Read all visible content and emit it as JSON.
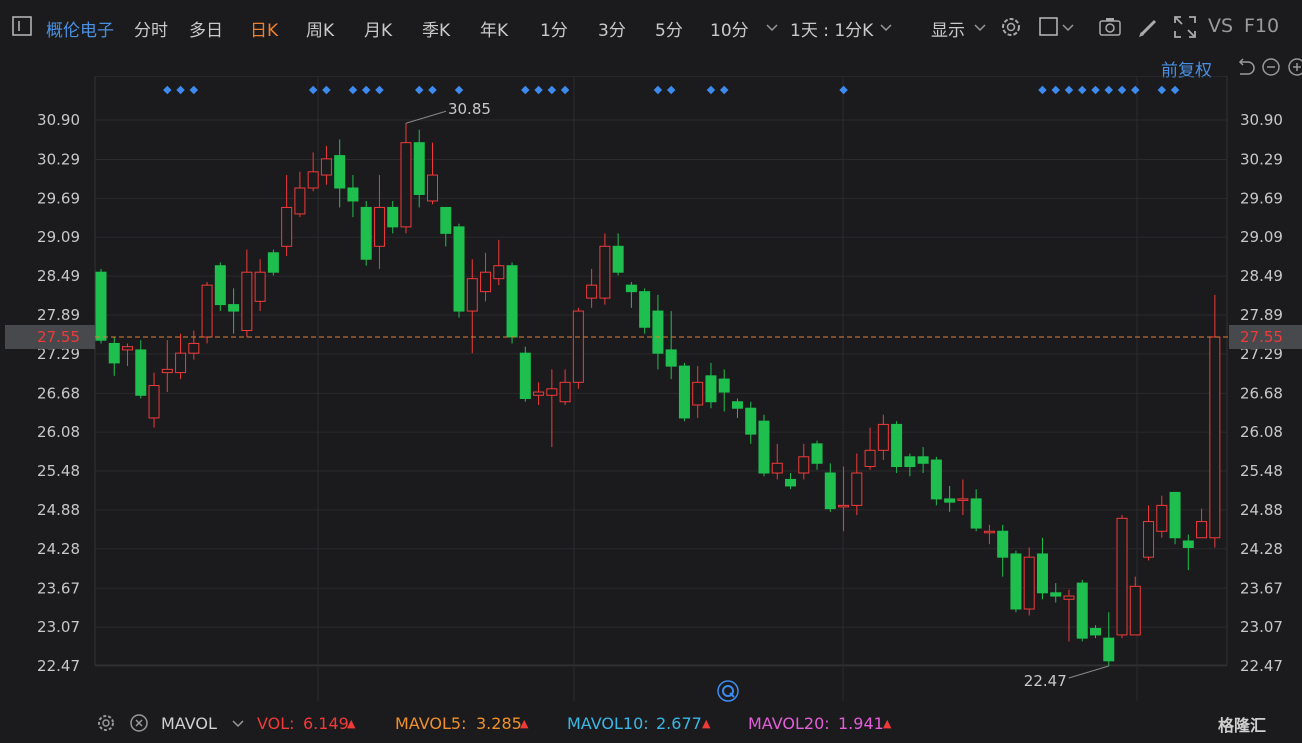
{
  "toolbar": {
    "stock_name": "概伦电子",
    "periods": [
      "分时",
      "多日",
      "日K",
      "周K",
      "月K",
      "季K",
      "年K",
      "1分",
      "3分",
      "5分",
      "10分"
    ],
    "active_period": "日K",
    "multi_period": "1天 : 1分K",
    "display_label": "显示",
    "vs_label": "VS",
    "f10_label": "F10"
  },
  "adjust_label": "前复权",
  "current_price_label": "27.55",
  "colors": {
    "up": "#f03a3a",
    "down": "#1fbf4f",
    "price_line": "#e07d2e",
    "grid": "#2b2b2e",
    "dots": "#3e8bef",
    "mavol5": "#f0902a",
    "mavol10": "#3ab7e6",
    "mavol20": "#e35ed8"
  },
  "indicator_bar": {
    "name": "MAVOL",
    "vol_label": "VOL:",
    "vol_value": "6.149",
    "mavol5_label": "MAVOL5:",
    "mavol5_value": "3.285",
    "mavol10_label": "MAVOL10:",
    "mavol10_value": "2.677",
    "mavol20_label": "MAVOL20:",
    "mavol20_value": "1.941"
  },
  "watermark": "格隆汇",
  "chart_data": {
    "type": "candlestick",
    "ylim": [
      22.1,
      31.15
    ],
    "y_ticks": [
      "30.90",
      "30.29",
      "29.69",
      "29.09",
      "28.49",
      "27.89",
      "27.29",
      "26.68",
      "26.08",
      "25.48",
      "24.88",
      "24.28",
      "23.67",
      "23.07",
      "22.47"
    ],
    "current_price": 27.55,
    "annotations": [
      {
        "text": "30.85",
        "label_value": 30.85,
        "type": "max"
      },
      {
        "text": "22.47",
        "label_value": 22.47,
        "type": "min"
      }
    ],
    "candles": [
      [
        28.55,
        27.5,
        28.6,
        27.45
      ],
      [
        27.45,
        27.15,
        27.55,
        26.95
      ],
      [
        27.35,
        27.4,
        27.45,
        27.1
      ],
      [
        27.35,
        26.65,
        27.5,
        26.6
      ],
      [
        26.3,
        26.8,
        27.0,
        26.15
      ],
      [
        27.0,
        27.05,
        27.5,
        26.7
      ],
      [
        27.0,
        27.3,
        27.6,
        26.9
      ],
      [
        27.3,
        27.45,
        27.65,
        27.2
      ],
      [
        27.55,
        28.35,
        28.4,
        27.45
      ],
      [
        28.65,
        28.05,
        28.7,
        27.95
      ],
      [
        28.05,
        27.95,
        28.3,
        27.6
      ],
      [
        27.65,
        28.55,
        28.9,
        27.55
      ],
      [
        28.1,
        28.55,
        28.75,
        27.95
      ],
      [
        28.85,
        28.55,
        28.9,
        28.5
      ],
      [
        28.95,
        29.55,
        30.05,
        28.8
      ],
      [
        29.45,
        29.85,
        30.1,
        29.4
      ],
      [
        29.85,
        30.1,
        30.4,
        29.8
      ],
      [
        30.05,
        30.3,
        30.5,
        29.9
      ],
      [
        30.35,
        29.85,
        30.6,
        29.55
      ],
      [
        29.85,
        29.65,
        30.05,
        29.4
      ],
      [
        29.55,
        28.75,
        29.65,
        28.65
      ],
      [
        28.95,
        29.55,
        30.05,
        28.6
      ],
      [
        29.55,
        29.25,
        29.65,
        29.15
      ],
      [
        29.25,
        30.55,
        30.85,
        29.15
      ],
      [
        30.55,
        29.75,
        30.75,
        29.55
      ],
      [
        29.65,
        30.05,
        30.55,
        29.6
      ],
      [
        29.55,
        29.15,
        29.55,
        28.95
      ],
      [
        29.25,
        27.95,
        29.3,
        27.85
      ],
      [
        27.95,
        28.45,
        28.75,
        27.3
      ],
      [
        28.25,
        28.55,
        28.85,
        28.1
      ],
      [
        28.45,
        28.65,
        29.05,
        28.35
      ],
      [
        28.65,
        27.55,
        28.7,
        27.45
      ],
      [
        27.3,
        26.6,
        27.4,
        26.55
      ],
      [
        26.65,
        26.7,
        26.85,
        26.5
      ],
      [
        26.65,
        26.75,
        27.05,
        25.85
      ],
      [
        26.55,
        26.85,
        27.05,
        26.5
      ],
      [
        26.85,
        27.95,
        28.0,
        26.75
      ],
      [
        28.15,
        28.35,
        28.6,
        28.0
      ],
      [
        28.15,
        28.95,
        29.15,
        28.05
      ],
      [
        28.95,
        28.55,
        29.15,
        28.5
      ],
      [
        28.35,
        28.25,
        28.4,
        28.0
      ],
      [
        28.25,
        27.7,
        28.3,
        27.6
      ],
      [
        27.95,
        27.3,
        28.2,
        27.05
      ],
      [
        27.35,
        27.1,
        27.95,
        26.9
      ],
      [
        27.1,
        26.3,
        27.15,
        26.25
      ],
      [
        26.5,
        26.85,
        27.1,
        26.3
      ],
      [
        26.95,
        26.55,
        27.15,
        26.45
      ],
      [
        26.9,
        26.7,
        27.05,
        26.4
      ],
      [
        26.55,
        26.45,
        26.6,
        26.3
      ],
      [
        26.45,
        26.05,
        26.55,
        25.9
      ],
      [
        26.25,
        25.45,
        26.35,
        25.4
      ],
      [
        25.45,
        25.6,
        25.9,
        25.35
      ],
      [
        25.35,
        25.25,
        25.45,
        25.2
      ],
      [
        25.45,
        25.7,
        25.9,
        25.35
      ],
      [
        25.9,
        25.6,
        25.95,
        25.5
      ],
      [
        25.45,
        24.9,
        25.6,
        24.85
      ],
      [
        24.95,
        24.95,
        25.55,
        24.55
      ],
      [
        24.95,
        25.45,
        25.75,
        24.8
      ],
      [
        25.55,
        25.8,
        26.15,
        25.5
      ],
      [
        25.8,
        26.2,
        26.35,
        25.65
      ],
      [
        26.2,
        25.55,
        26.25,
        25.45
      ],
      [
        25.7,
        25.55,
        25.75,
        25.4
      ],
      [
        25.7,
        25.6,
        25.85,
        25.45
      ],
      [
        25.65,
        25.05,
        25.7,
        24.95
      ],
      [
        25.05,
        25.0,
        25.25,
        24.85
      ],
      [
        25.05,
        25.05,
        25.35,
        24.8
      ],
      [
        25.05,
        24.6,
        25.2,
        24.55
      ],
      [
        24.55,
        24.55,
        24.65,
        24.35
      ],
      [
        24.55,
        24.15,
        24.65,
        23.85
      ],
      [
        24.2,
        23.35,
        24.25,
        23.3
      ],
      [
        23.35,
        24.15,
        24.3,
        23.25
      ],
      [
        24.2,
        23.6,
        24.45,
        23.5
      ],
      [
        23.6,
        23.55,
        23.75,
        23.45
      ],
      [
        23.5,
        23.55,
        23.65,
        22.85
      ],
      [
        23.75,
        22.9,
        23.8,
        22.85
      ],
      [
        23.05,
        22.95,
        23.1,
        22.9
      ],
      [
        22.9,
        22.55,
        23.3,
        22.47
      ],
      [
        22.95,
        24.75,
        24.8,
        22.9
      ],
      [
        22.95,
        23.7,
        23.85,
        22.95
      ],
      [
        24.15,
        24.7,
        24.95,
        24.1
      ],
      [
        24.55,
        24.95,
        25.1,
        24.45
      ],
      [
        25.15,
        24.45,
        25.15,
        24.35
      ],
      [
        24.4,
        24.3,
        24.5,
        23.95
      ],
      [
        24.45,
        24.7,
        24.9,
        24.45
      ],
      [
        24.45,
        27.55,
        28.2,
        24.3
      ]
    ],
    "event_dot_candles": [
      5,
      6,
      7,
      16,
      17,
      19,
      20,
      21,
      24,
      25,
      27,
      32,
      33,
      34,
      35,
      42,
      43,
      46,
      47,
      56,
      71,
      72,
      73,
      74,
      75,
      76,
      77,
      78,
      80,
      81
    ]
  }
}
